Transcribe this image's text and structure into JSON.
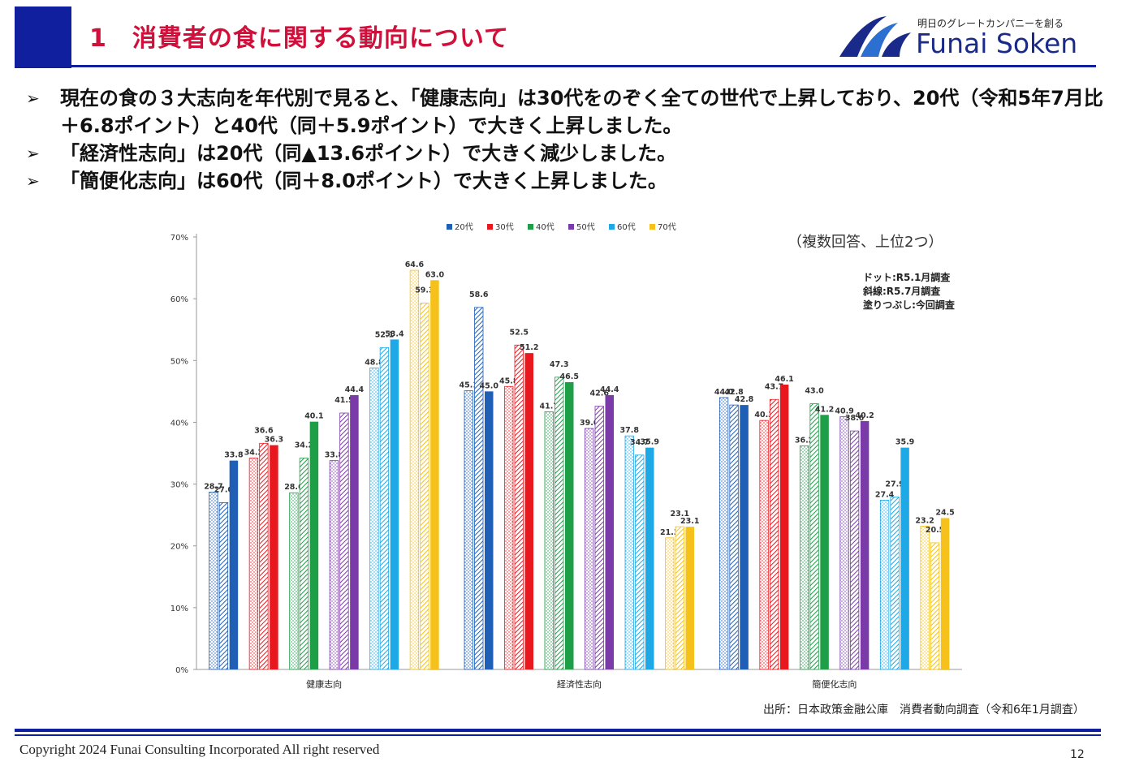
{
  "header": {
    "title": "1　消費者の食に関する動向について",
    "accent_color": "#0f1f9e",
    "title_color": "#d0103a"
  },
  "logo": {
    "tagline": "明日のグレートカンパニーを創る",
    "name": "Funai Soken"
  },
  "bullets": [
    {
      "mark": "➢",
      "text": "現在の食の３大志向を年代別で見ると、「健康志向」は30代をのぞく全ての世代で上昇しており、20代（令和5年7月比＋6.8ポイント）と40代（同＋5.9ポイント）で大きく上昇しました。"
    },
    {
      "mark": "➢",
      "text": "「経済性志向」は20代（同▲13.6ポイント）で大きく減少しました。"
    },
    {
      "mark": "➢",
      "text": "「簡便化志向」は60代（同＋8.0ポイント）で大きく上昇しました。"
    }
  ],
  "chart_data": {
    "type": "bar",
    "categories": [
      "健康志向",
      "経済性志向",
      "簡便化志向"
    ],
    "series": [
      {
        "name": "20代",
        "color": "#1f5fb5",
        "values": [
          [
            28.7,
            27.0,
            33.8
          ],
          [
            45.1,
            58.6,
            45.0
          ],
          [
            44.0,
            42.8,
            42.8
          ]
        ]
      },
      {
        "name": "30代",
        "color": "#e8181e",
        "values": [
          [
            34.2,
            36.6,
            36.3
          ],
          [
            45.8,
            52.5,
            51.2
          ],
          [
            40.3,
            43.7,
            46.1
          ]
        ]
      },
      {
        "name": "40代",
        "color": "#1f9e48",
        "values": [
          [
            28.6,
            34.2,
            40.1
          ],
          [
            41.7,
            47.3,
            46.5
          ],
          [
            36.2,
            43.0,
            41.2
          ]
        ]
      },
      {
        "name": "50代",
        "color": "#7a3aa8",
        "values": [
          [
            33.8,
            41.5,
            44.4
          ],
          [
            39.0,
            42.6,
            44.4
          ],
          [
            40.9,
            38.6,
            40.2
          ]
        ]
      },
      {
        "name": "60代",
        "color": "#1ea9e6",
        "values": [
          [
            48.8,
            52.1,
            53.4
          ],
          [
            37.8,
            34.7,
            35.9
          ],
          [
            27.4,
            27.9,
            35.9
          ]
        ]
      },
      {
        "name": "70代",
        "color": "#f5c11a",
        "values": [
          [
            64.6,
            59.3,
            63.0
          ],
          [
            21.3,
            23.1,
            23.1
          ],
          [
            23.2,
            20.5,
            24.5
          ]
        ]
      }
    ],
    "yticks": [
      "0%",
      "10%",
      "20%",
      "30%",
      "40%",
      "50%",
      "60%",
      "70%"
    ],
    "ylim": [
      0,
      70
    ],
    "legend_position": "top",
    "note_main": "（複数回答、上位2つ）",
    "note_lines": [
      "ドット:R5.1月調査",
      "斜線:R5.7月調査",
      "塗りつぶし:今回調査"
    ]
  },
  "source": "出所：日本政策金融公庫　消費者動向調査（令和6年1月調査）",
  "footer": {
    "copyright": "Copyright 2024 Funai Consulting Incorporated All right reserved",
    "page_number": "12"
  }
}
